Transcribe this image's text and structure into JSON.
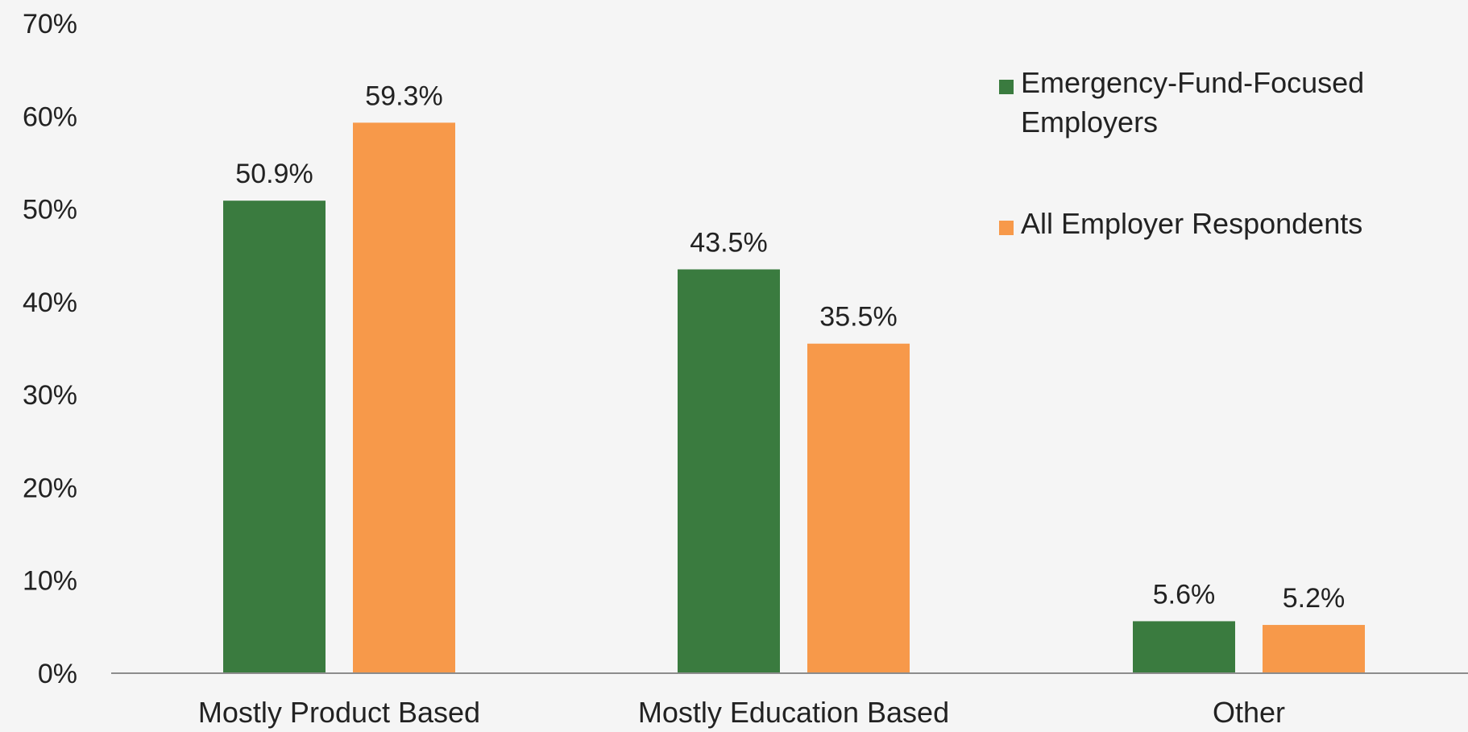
{
  "chart_data": {
    "type": "bar",
    "title": "",
    "xlabel": "",
    "ylabel": "",
    "categories": [
      "Mostly Product Based",
      "Mostly Education Based",
      "Other"
    ],
    "series": [
      {
        "name": "Emergency-Fund-Focused Employers",
        "legend_lines": [
          "Emergency-Fund-Focused",
          "Employers"
        ],
        "color": "#3a7b3f",
        "values": [
          50.9,
          43.5,
          5.6
        ],
        "labels": [
          "50.9%",
          "43.5%",
          "5.6%"
        ]
      },
      {
        "name": "All Employer Respondents",
        "legend_lines": [
          "All Employer Respondents"
        ],
        "color": "#f7994a",
        "values": [
          59.3,
          35.5,
          5.2
        ],
        "labels": [
          "59.3%",
          "35.5%",
          "5.2%"
        ]
      }
    ],
    "ylim": [
      0,
      70
    ],
    "yticks": [
      0,
      10,
      20,
      30,
      40,
      50,
      60,
      70
    ],
    "ytick_labels": [
      "0%",
      "10%",
      "20%",
      "30%",
      "40%",
      "50%",
      "60%",
      "70%"
    ],
    "grid": false,
    "legend_position": "top-right",
    "background": "#f5f5f5",
    "axis_color": "#8c8c8c"
  }
}
